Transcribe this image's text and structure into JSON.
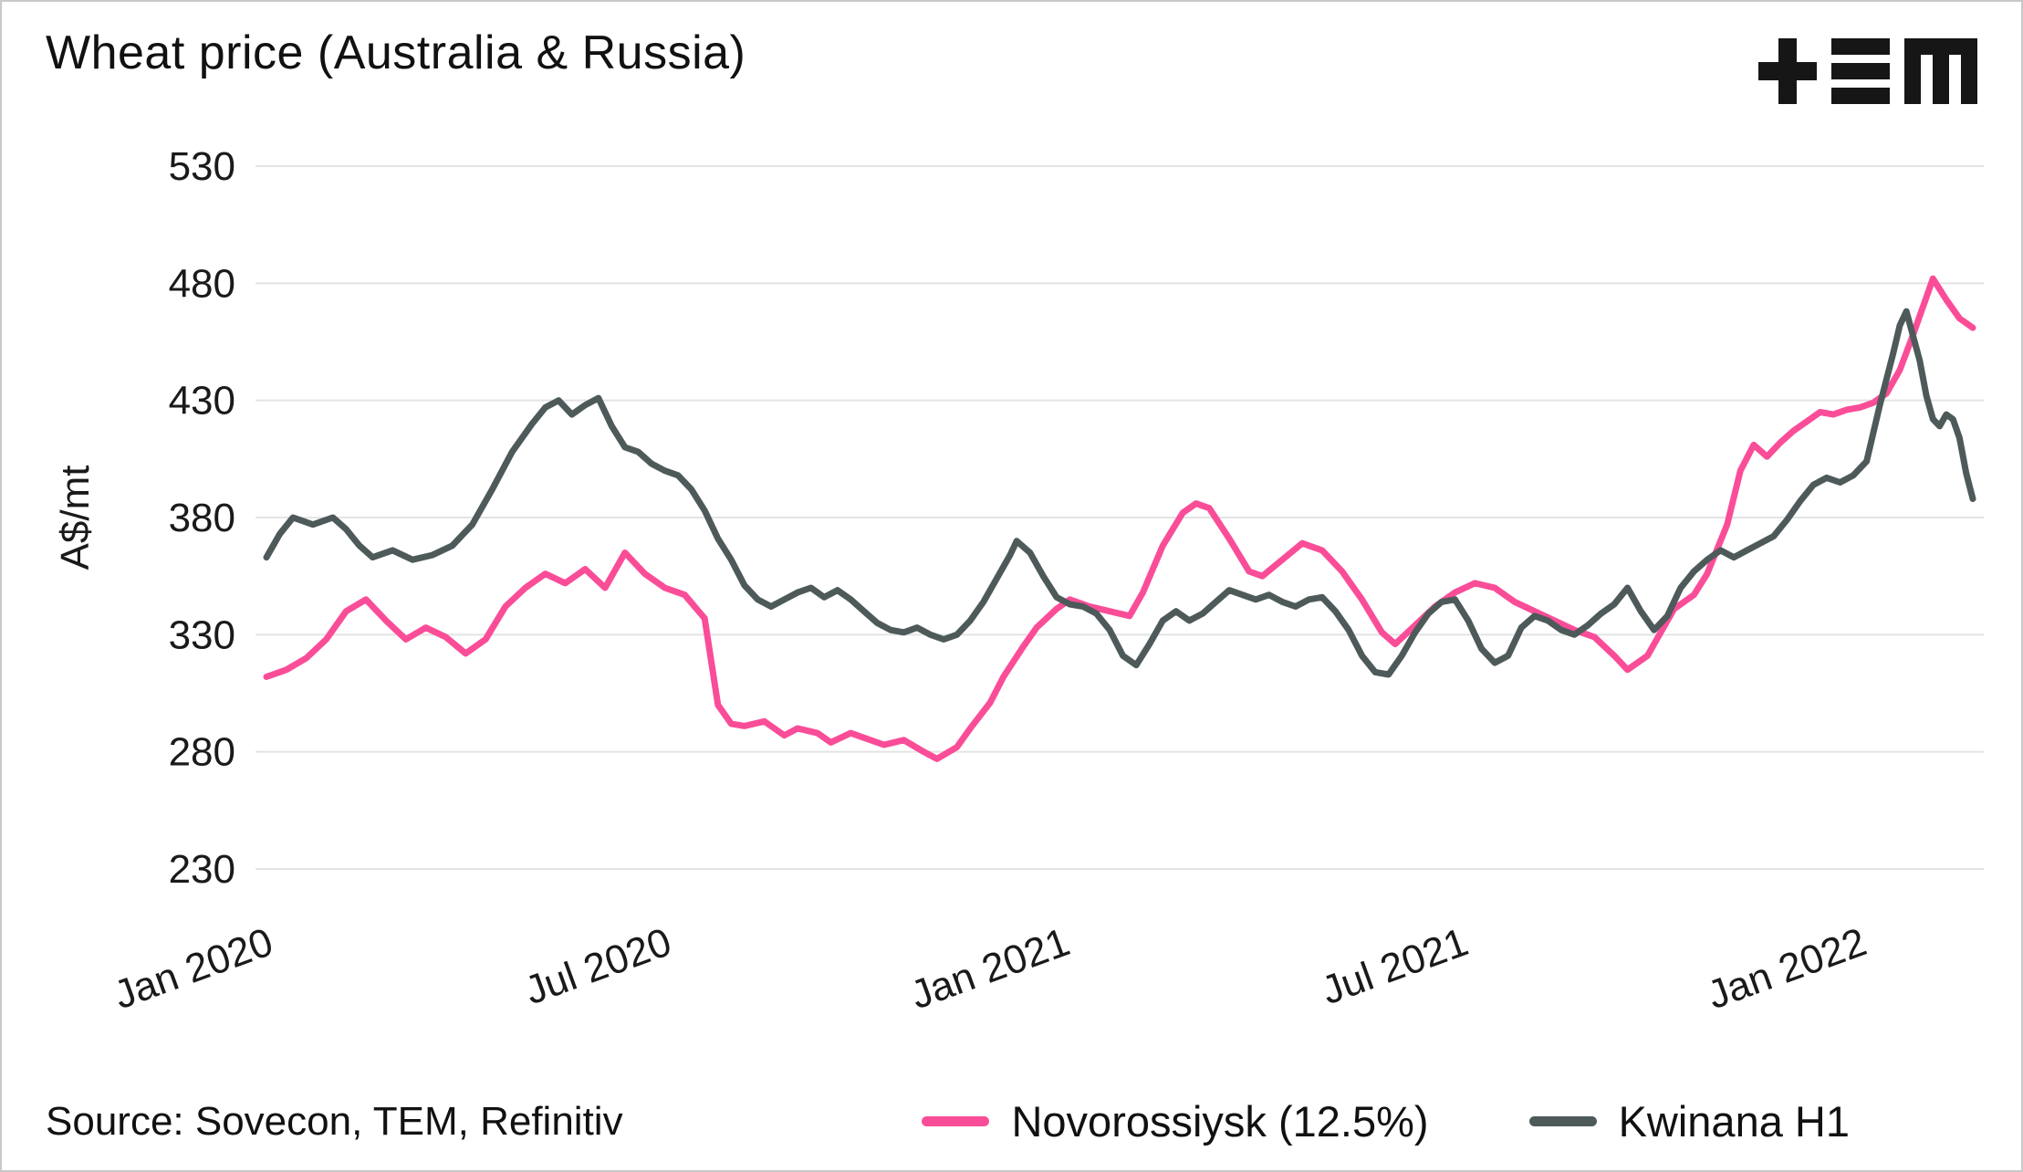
{
  "title": "Wheat price (Australia & Russia)",
  "logo_name": "TEM logo",
  "source": "Source: Sovecon, TEM, Refinitiv",
  "legend": [
    {
      "label": "Novorossiysk (12.5%)",
      "color": "#fa4d98"
    },
    {
      "label": "Kwinana H1",
      "color": "#4e5a5a"
    }
  ],
  "colors": {
    "grid": "#e4e4e4",
    "text": "#1a1a1a",
    "pink": "#fa4d98",
    "slate": "#4e5a5a"
  },
  "chart_data": {
    "type": "line",
    "title": "Wheat price (Australia & Russia)",
    "ylabel": "A$/mt",
    "ylim": [
      230,
      530
    ],
    "yticks": [
      230,
      280,
      330,
      380,
      430,
      480,
      530
    ],
    "xlim_months": [
      0,
      25.7
    ],
    "xticks": [
      {
        "x": 0,
        "label": "Jan 2020"
      },
      {
        "x": 6,
        "label": "Jul 2020"
      },
      {
        "x": 12,
        "label": "Jan 2021"
      },
      {
        "x": 18,
        "label": "Jul 2021"
      },
      {
        "x": 24,
        "label": "Jan 2022"
      }
    ],
    "grid": true,
    "legend_position": "bottom",
    "series": [
      {
        "name": "Novorossiysk (12.5%)",
        "color": "#fa4d98",
        "points": [
          [
            0,
            312
          ],
          [
            0.3,
            315
          ],
          [
            0.6,
            320
          ],
          [
            0.9,
            328
          ],
          [
            1.2,
            340
          ],
          [
            1.5,
            345
          ],
          [
            1.8,
            336
          ],
          [
            2.1,
            328
          ],
          [
            2.4,
            333
          ],
          [
            2.7,
            329
          ],
          [
            3.0,
            322
          ],
          [
            3.3,
            328
          ],
          [
            3.6,
            342
          ],
          [
            3.9,
            350
          ],
          [
            4.2,
            356
          ],
          [
            4.5,
            352
          ],
          [
            4.8,
            358
          ],
          [
            5.1,
            350
          ],
          [
            5.4,
            365
          ],
          [
            5.7,
            356
          ],
          [
            6.0,
            350
          ],
          [
            6.3,
            347
          ],
          [
            6.6,
            337
          ],
          [
            6.8,
            300
          ],
          [
            7.0,
            292
          ],
          [
            7.2,
            291
          ],
          [
            7.5,
            293
          ],
          [
            7.8,
            287
          ],
          [
            8.0,
            290
          ],
          [
            8.3,
            288
          ],
          [
            8.5,
            284
          ],
          [
            8.8,
            288
          ],
          [
            9.0,
            286
          ],
          [
            9.3,
            283
          ],
          [
            9.6,
            285
          ],
          [
            9.9,
            280
          ],
          [
            10.1,
            277
          ],
          [
            10.4,
            282
          ],
          [
            10.6,
            290
          ],
          [
            10.9,
            301
          ],
          [
            11.1,
            312
          ],
          [
            11.4,
            325
          ],
          [
            11.6,
            333
          ],
          [
            11.9,
            341
          ],
          [
            12.1,
            345
          ],
          [
            12.4,
            342
          ],
          [
            12.7,
            340
          ],
          [
            13.0,
            338
          ],
          [
            13.2,
            348
          ],
          [
            13.5,
            368
          ],
          [
            13.8,
            382
          ],
          [
            14.0,
            386
          ],
          [
            14.2,
            384
          ],
          [
            14.5,
            371
          ],
          [
            14.8,
            357
          ],
          [
            15.0,
            355
          ],
          [
            15.3,
            362
          ],
          [
            15.6,
            369
          ],
          [
            15.9,
            366
          ],
          [
            16.2,
            357
          ],
          [
            16.5,
            345
          ],
          [
            16.8,
            331
          ],
          [
            17.0,
            326
          ],
          [
            17.3,
            334
          ],
          [
            17.6,
            342
          ],
          [
            17.9,
            348
          ],
          [
            18.2,
            352
          ],
          [
            18.5,
            350
          ],
          [
            18.8,
            344
          ],
          [
            19.1,
            340
          ],
          [
            19.4,
            336
          ],
          [
            19.7,
            332
          ],
          [
            20.0,
            329
          ],
          [
            20.3,
            321
          ],
          [
            20.5,
            315
          ],
          [
            20.8,
            321
          ],
          [
            21.0,
            331
          ],
          [
            21.2,
            341
          ],
          [
            21.5,
            347
          ],
          [
            21.7,
            356
          ],
          [
            22.0,
            377
          ],
          [
            22.2,
            400
          ],
          [
            22.4,
            411
          ],
          [
            22.6,
            406
          ],
          [
            22.8,
            412
          ],
          [
            23.0,
            417
          ],
          [
            23.2,
            421
          ],
          [
            23.4,
            425
          ],
          [
            23.6,
            424
          ],
          [
            23.8,
            426
          ],
          [
            24.0,
            427
          ],
          [
            24.2,
            429
          ],
          [
            24.4,
            433
          ],
          [
            24.6,
            443
          ],
          [
            24.8,
            458
          ],
          [
            25.0,
            474
          ],
          [
            25.1,
            482
          ],
          [
            25.3,
            473
          ],
          [
            25.5,
            465
          ],
          [
            25.7,
            461
          ]
        ]
      },
      {
        "name": "Kwinana H1",
        "color": "#4e5a5a",
        "points": [
          [
            0,
            363
          ],
          [
            0.2,
            373
          ],
          [
            0.4,
            380
          ],
          [
            0.7,
            377
          ],
          [
            1.0,
            380
          ],
          [
            1.2,
            375
          ],
          [
            1.4,
            368
          ],
          [
            1.6,
            363
          ],
          [
            1.9,
            366
          ],
          [
            2.2,
            362
          ],
          [
            2.5,
            364
          ],
          [
            2.8,
            368
          ],
          [
            3.1,
            377
          ],
          [
            3.4,
            392
          ],
          [
            3.7,
            408
          ],
          [
            4.0,
            420
          ],
          [
            4.2,
            427
          ],
          [
            4.4,
            430
          ],
          [
            4.6,
            424
          ],
          [
            4.8,
            428
          ],
          [
            5.0,
            431
          ],
          [
            5.2,
            419
          ],
          [
            5.4,
            410
          ],
          [
            5.6,
            408
          ],
          [
            5.8,
            403
          ],
          [
            6.0,
            400
          ],
          [
            6.2,
            398
          ],
          [
            6.4,
            392
          ],
          [
            6.6,
            383
          ],
          [
            6.8,
            371
          ],
          [
            7.0,
            362
          ],
          [
            7.2,
            351
          ],
          [
            7.4,
            345
          ],
          [
            7.6,
            342
          ],
          [
            7.8,
            345
          ],
          [
            8.0,
            348
          ],
          [
            8.2,
            350
          ],
          [
            8.4,
            346
          ],
          [
            8.6,
            349
          ],
          [
            8.8,
            345
          ],
          [
            9.0,
            340
          ],
          [
            9.2,
            335
          ],
          [
            9.4,
            332
          ],
          [
            9.6,
            331
          ],
          [
            9.8,
            333
          ],
          [
            10.0,
            330
          ],
          [
            10.2,
            328
          ],
          [
            10.4,
            330
          ],
          [
            10.6,
            336
          ],
          [
            10.8,
            344
          ],
          [
            11.0,
            354
          ],
          [
            11.2,
            364
          ],
          [
            11.3,
            370
          ],
          [
            11.5,
            365
          ],
          [
            11.7,
            355
          ],
          [
            11.9,
            346
          ],
          [
            12.1,
            343
          ],
          [
            12.3,
            342
          ],
          [
            12.5,
            339
          ],
          [
            12.7,
            332
          ],
          [
            12.9,
            321
          ],
          [
            13.1,
            317
          ],
          [
            13.3,
            326
          ],
          [
            13.5,
            336
          ],
          [
            13.7,
            340
          ],
          [
            13.9,
            336
          ],
          [
            14.1,
            339
          ],
          [
            14.3,
            344
          ],
          [
            14.5,
            349
          ],
          [
            14.7,
            347
          ],
          [
            14.9,
            345
          ],
          [
            15.1,
            347
          ],
          [
            15.3,
            344
          ],
          [
            15.5,
            342
          ],
          [
            15.7,
            345
          ],
          [
            15.9,
            346
          ],
          [
            16.1,
            340
          ],
          [
            16.3,
            332
          ],
          [
            16.5,
            321
          ],
          [
            16.7,
            314
          ],
          [
            16.9,
            313
          ],
          [
            17.1,
            321
          ],
          [
            17.3,
            331
          ],
          [
            17.5,
            339
          ],
          [
            17.7,
            344
          ],
          [
            17.9,
            345
          ],
          [
            18.1,
            336
          ],
          [
            18.3,
            324
          ],
          [
            18.5,
            318
          ],
          [
            18.7,
            321
          ],
          [
            18.9,
            333
          ],
          [
            19.1,
            338
          ],
          [
            19.3,
            336
          ],
          [
            19.5,
            332
          ],
          [
            19.7,
            330
          ],
          [
            19.9,
            334
          ],
          [
            20.1,
            339
          ],
          [
            20.3,
            343
          ],
          [
            20.5,
            350
          ],
          [
            20.7,
            340
          ],
          [
            20.9,
            332
          ],
          [
            21.1,
            338
          ],
          [
            21.3,
            350
          ],
          [
            21.5,
            357
          ],
          [
            21.7,
            362
          ],
          [
            21.9,
            366
          ],
          [
            22.1,
            363
          ],
          [
            22.3,
            366
          ],
          [
            22.5,
            369
          ],
          [
            22.7,
            372
          ],
          [
            22.9,
            379
          ],
          [
            23.1,
            387
          ],
          [
            23.3,
            394
          ],
          [
            23.5,
            397
          ],
          [
            23.7,
            395
          ],
          [
            23.9,
            398
          ],
          [
            24.1,
            404
          ],
          [
            24.3,
            428
          ],
          [
            24.5,
            450
          ],
          [
            24.6,
            462
          ],
          [
            24.7,
            468
          ],
          [
            24.9,
            447
          ],
          [
            25.0,
            432
          ],
          [
            25.1,
            422
          ],
          [
            25.2,
            419
          ],
          [
            25.3,
            424
          ],
          [
            25.4,
            422
          ],
          [
            25.5,
            414
          ],
          [
            25.6,
            399
          ],
          [
            25.7,
            388
          ]
        ]
      }
    ]
  }
}
